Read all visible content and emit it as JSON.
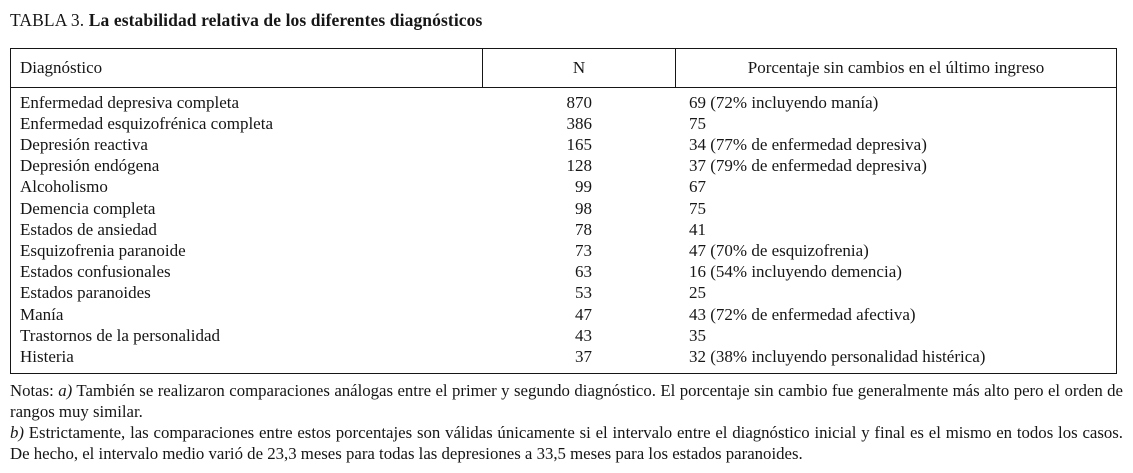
{
  "title": {
    "label": "TABLA 3. ",
    "bold_text": "La estabilidad relativa de los diferentes diagnósticos"
  },
  "table": {
    "headers": {
      "diagnostico": "Diagnóstico",
      "n": "N",
      "porcentaje": "Porcentaje sin cambios en el último ingreso"
    },
    "rows": [
      {
        "diagnostico": "Enfermedad depresiva completa",
        "n": "870",
        "porcentaje": "69 (72% incluyendo manía)"
      },
      {
        "diagnostico": "Enfermedad esquizofrénica completa",
        "n": "386",
        "porcentaje": "75"
      },
      {
        "diagnostico": "Depresión reactiva",
        "n": "165",
        "porcentaje": "34 (77% de enfermedad depresiva)"
      },
      {
        "diagnostico": "Depresión endógena",
        "n": "128",
        "porcentaje": "37 (79% de enfermedad depresiva)"
      },
      {
        "diagnostico": "Alcoholismo",
        "n": "99",
        "porcentaje": "67"
      },
      {
        "diagnostico": "Demencia completa",
        "n": "98",
        "porcentaje": "75"
      },
      {
        "diagnostico": "Estados de ansiedad",
        "n": "78",
        "porcentaje": "41"
      },
      {
        "diagnostico": "Esquizofrenia paranoide",
        "n": "73",
        "porcentaje": "47 (70% de esquizofrenia)"
      },
      {
        "diagnostico": "Estados confusionales",
        "n": "63",
        "porcentaje": "16 (54% incluyendo demencia)"
      },
      {
        "diagnostico": "Estados paranoides",
        "n": "53",
        "porcentaje": "25"
      },
      {
        "diagnostico": "Manía",
        "n": "47",
        "porcentaje": "43 (72% de enfermedad afectiva)"
      },
      {
        "diagnostico": "Trastornos de la personalidad",
        "n": "43",
        "porcentaje": "35"
      },
      {
        "diagnostico": "Histeria",
        "n": "37",
        "porcentaje": "32 (38% incluyendo personalidad histérica)"
      }
    ]
  },
  "notes": {
    "intro": "Notas: ",
    "a_label": "a)",
    "a_text": " También se realizaron comparaciones análogas entre el primer y segundo diagnóstico. El porcentaje sin cambio fue generalmente más alto pero el orden de rangos muy similar.",
    "b_label": "b)",
    "b_text": " Estrictamente, las comparaciones entre estos porcentajes son válidas únicamente si el intervalo entre el diagnóstico inicial y final es el mismo en todos los casos. De hecho, el intervalo medio varió de 23,3 meses para todas las depresiones a 33,5 meses para los estados paranoides."
  }
}
